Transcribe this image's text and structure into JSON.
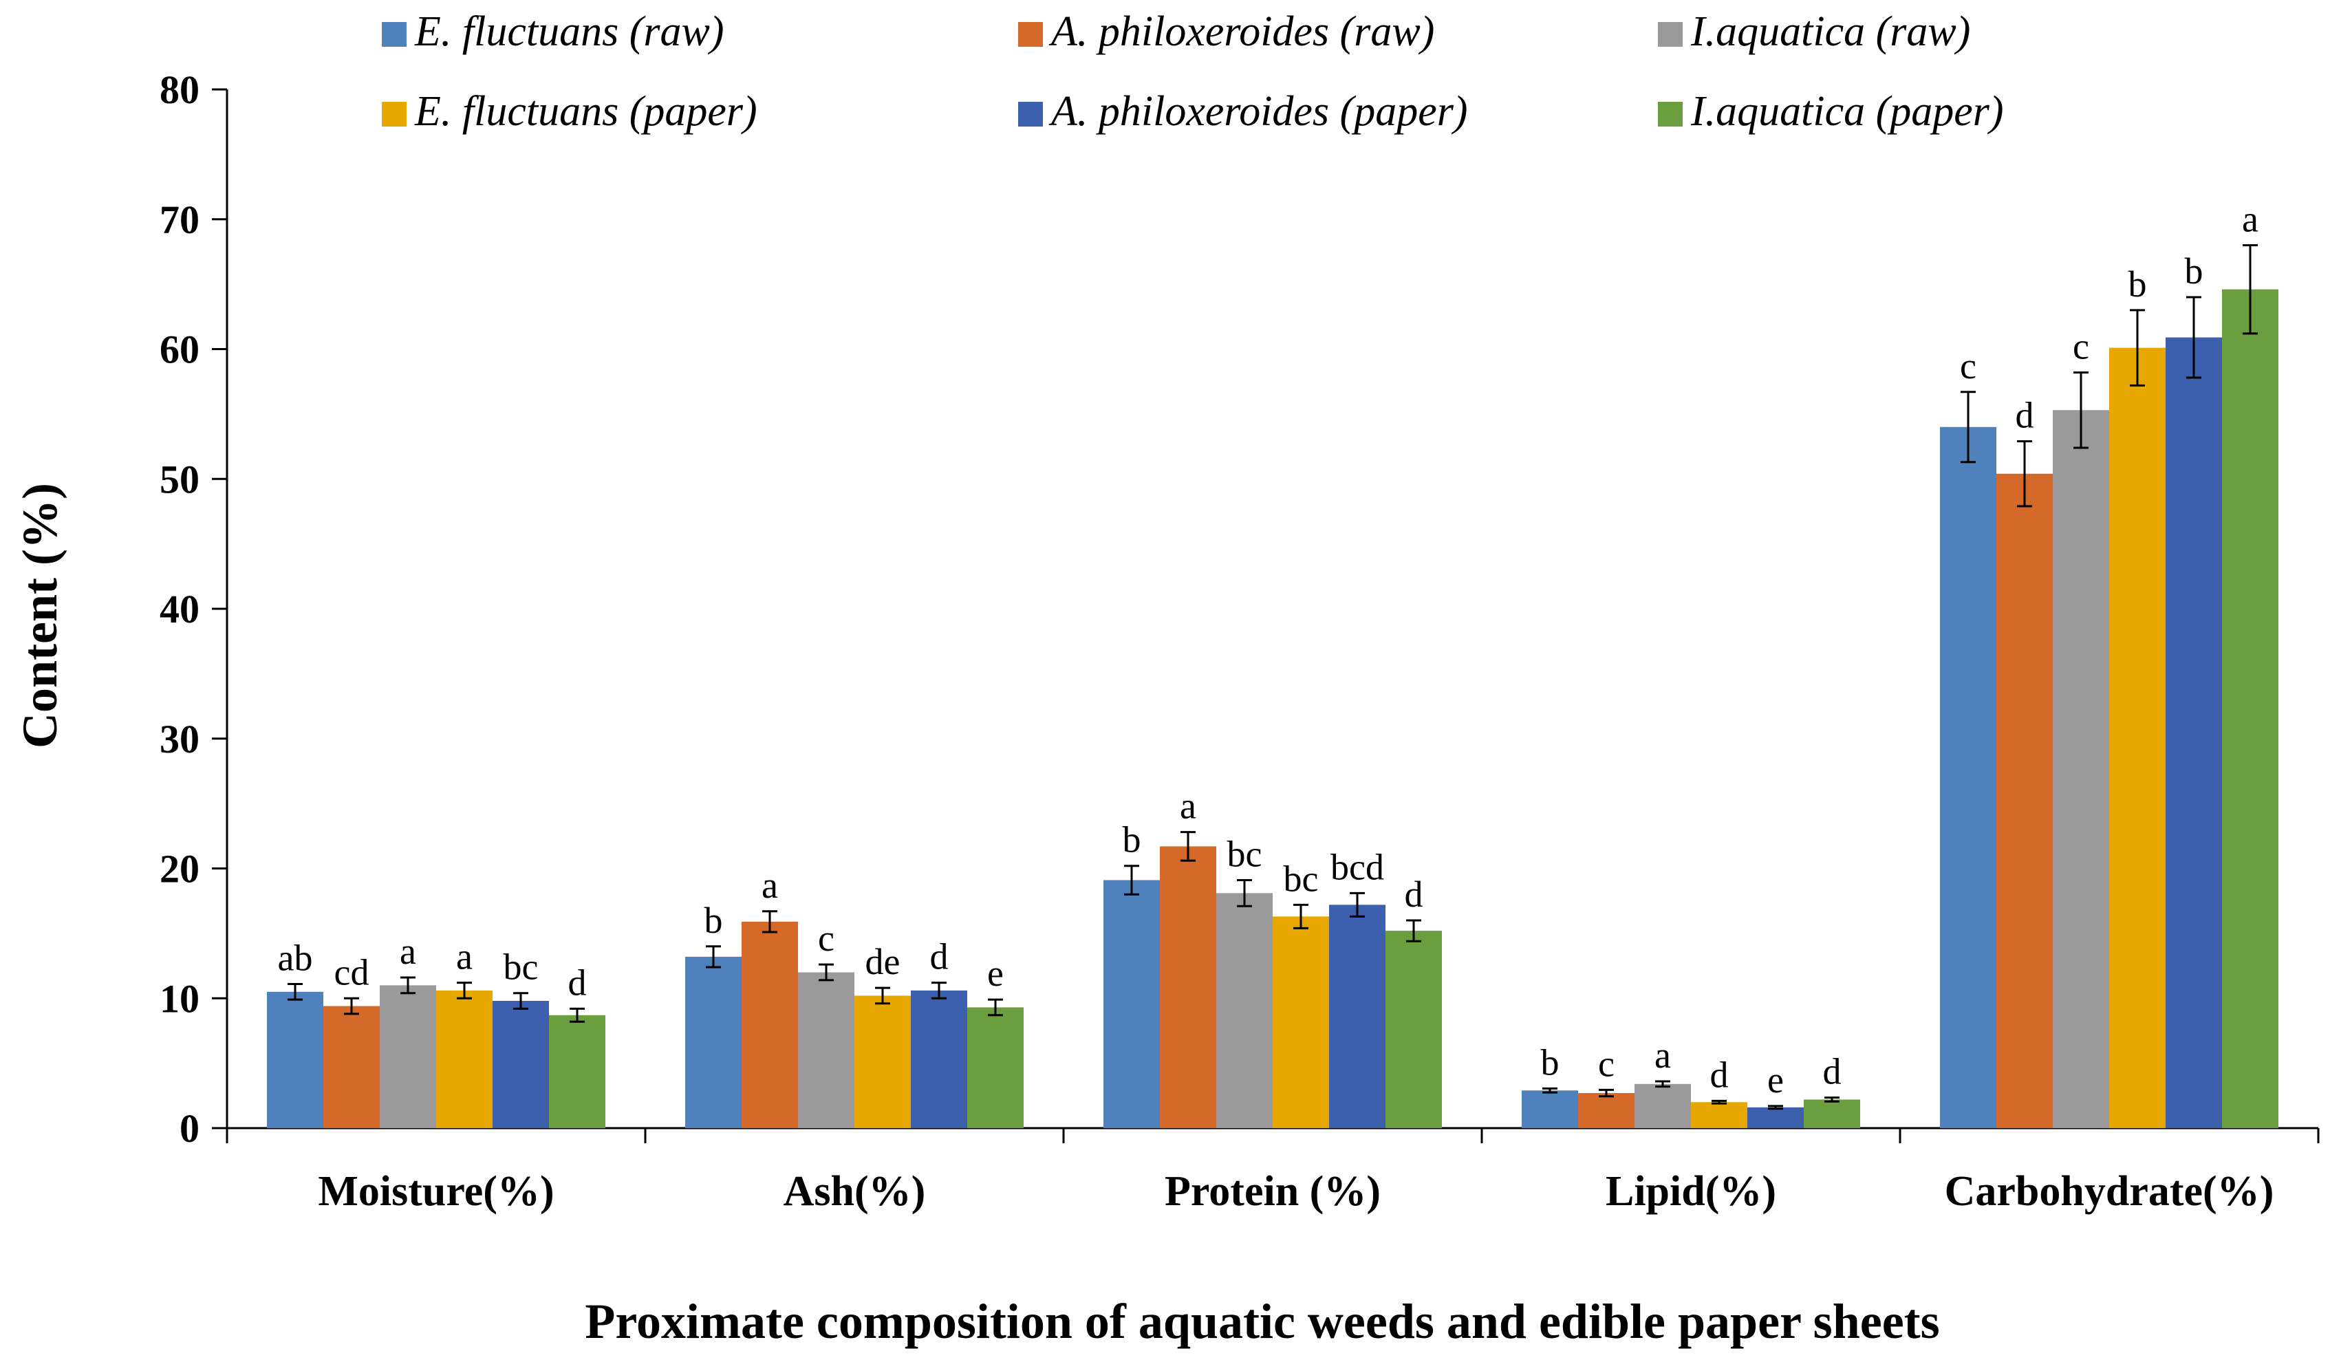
{
  "chart_data": {
    "type": "bar",
    "title": "",
    "xlabel": "Proximate composition of aquatic weeds and edible paper sheets",
    "ylabel": "Content (%)",
    "ylim": [
      0,
      80
    ],
    "yticks": [
      "0",
      "10",
      "20",
      "30",
      "40",
      "50",
      "60",
      "70",
      "80"
    ],
    "legend_position": "top",
    "categories": [
      "Moisture(%)",
      "Ash(%)",
      "Protein (%)",
      "Lipid(%)",
      "Carbohydrate(%)"
    ],
    "series": [
      {
        "name": "E. fluctuans (raw)",
        "color": "#4F81BD",
        "values": [
          10.5,
          13.2,
          19.1,
          2.9,
          54.0
        ],
        "errors": [
          0.6,
          0.8,
          1.1,
          0.15,
          2.7
        ],
        "letters": [
          "ab",
          "b",
          "b",
          "b",
          "c"
        ]
      },
      {
        "name": "A. philoxeroides (raw)",
        "color": "#D4692A",
        "values": [
          9.4,
          15.9,
          21.7,
          2.7,
          50.4
        ],
        "errors": [
          0.6,
          0.8,
          1.1,
          0.25,
          2.5
        ],
        "letters": [
          "cd",
          "a",
          "a",
          "c",
          "d"
        ]
      },
      {
        "name": "I.aquatica (raw)",
        "color": "#9A9A9A",
        "values": [
          11.0,
          12.0,
          18.1,
          3.4,
          55.3
        ],
        "errors": [
          0.6,
          0.6,
          1.0,
          0.2,
          2.9
        ],
        "letters": [
          "a",
          "c",
          "bc",
          "a",
          "c"
        ]
      },
      {
        "name": "E. fluctuans (paper)",
        "color": "#E6A800",
        "values": [
          10.6,
          10.2,
          16.3,
          2.0,
          60.1
        ],
        "errors": [
          0.6,
          0.6,
          0.9,
          0.1,
          2.9
        ],
        "letters": [
          "a",
          "de",
          "bc",
          "d",
          "b"
        ]
      },
      {
        "name": "A. philoxeroides (paper)",
        "color": "#3C5FAE",
        "values": [
          9.8,
          10.6,
          17.2,
          1.6,
          60.9
        ],
        "errors": [
          0.6,
          0.6,
          0.9,
          0.1,
          3.1
        ],
        "letters": [
          "bc",
          "d",
          "bcd",
          "e",
          "b"
        ]
      },
      {
        "name": "I.aquatica (paper)",
        "color": "#6B9E3E",
        "values": [
          8.7,
          9.3,
          15.2,
          2.2,
          64.6
        ],
        "errors": [
          0.5,
          0.6,
          0.8,
          0.15,
          3.4
        ],
        "letters": [
          "d",
          "e",
          "d",
          "d",
          "a"
        ]
      }
    ]
  }
}
